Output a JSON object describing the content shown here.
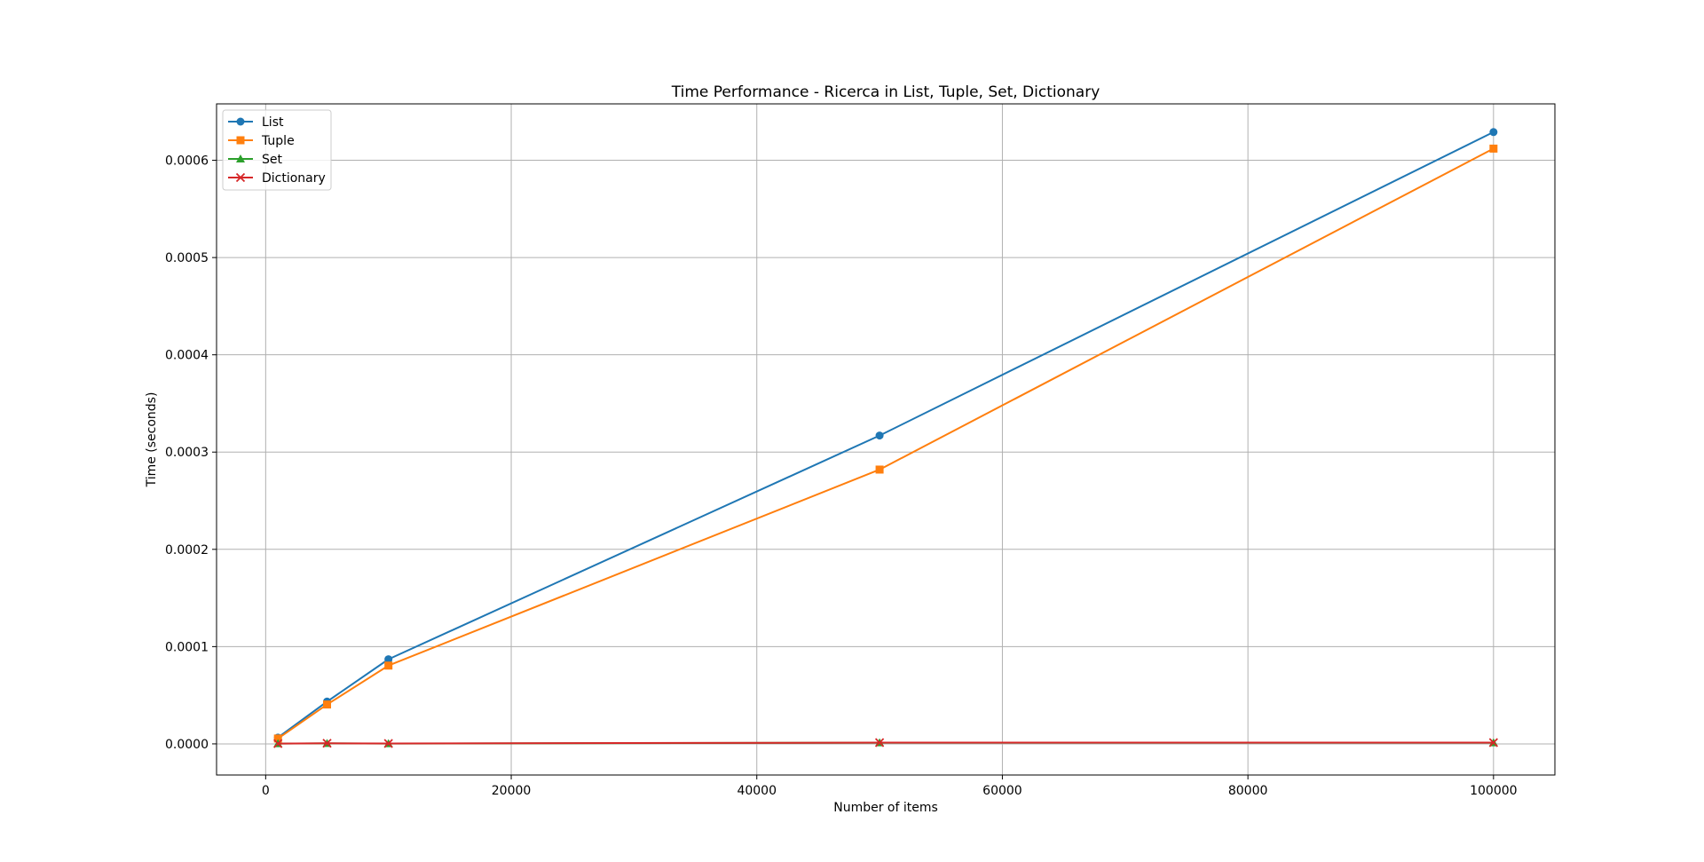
{
  "chart_data": {
    "type": "line",
    "title": "Time Performance - Ricerca in List, Tuple, Set, Dictionary",
    "xlabel": "Number of items",
    "ylabel": "Time (seconds)",
    "x": [
      1000,
      5000,
      10000,
      50000,
      100000
    ],
    "xlim": [
      -4000,
      105000
    ],
    "ylim": [
      -3.2e-05,
      0.000658
    ],
    "x_ticks": [
      0,
      20000,
      40000,
      60000,
      80000,
      100000
    ],
    "x_tick_labels": [
      "0",
      "20000",
      "40000",
      "60000",
      "80000",
      "100000"
    ],
    "y_ticks": [
      0,
      0.0001,
      0.0002,
      0.0003,
      0.0004,
      0.0005,
      0.0006
    ],
    "y_tick_labels": [
      "0.0000",
      "0.0001",
      "0.0002",
      "0.0003",
      "0.0004",
      "0.0005",
      "0.0006"
    ],
    "grid": true,
    "legend_position": "top-left",
    "series": [
      {
        "name": "List",
        "color": "#1f77b4",
        "marker": "circle",
        "values": [
          6.5e-06,
          4.35e-05,
          8.7e-05,
          0.000317,
          0.000629
        ]
      },
      {
        "name": "Tuple",
        "color": "#ff7f0e",
        "marker": "square",
        "values": [
          5.5e-06,
          4.05e-05,
          8.05e-05,
          0.000282,
          0.000612
        ]
      },
      {
        "name": "Set",
        "color": "#2ca02c",
        "marker": "triangle",
        "values": [
          3e-07,
          5e-07,
          3e-07,
          1.2e-06,
          1.2e-06
        ]
      },
      {
        "name": "Dictionary",
        "color": "#d62728",
        "marker": "x",
        "values": [
          3e-07,
          6e-07,
          4e-07,
          1.3e-06,
          1.3e-06
        ]
      }
    ]
  }
}
